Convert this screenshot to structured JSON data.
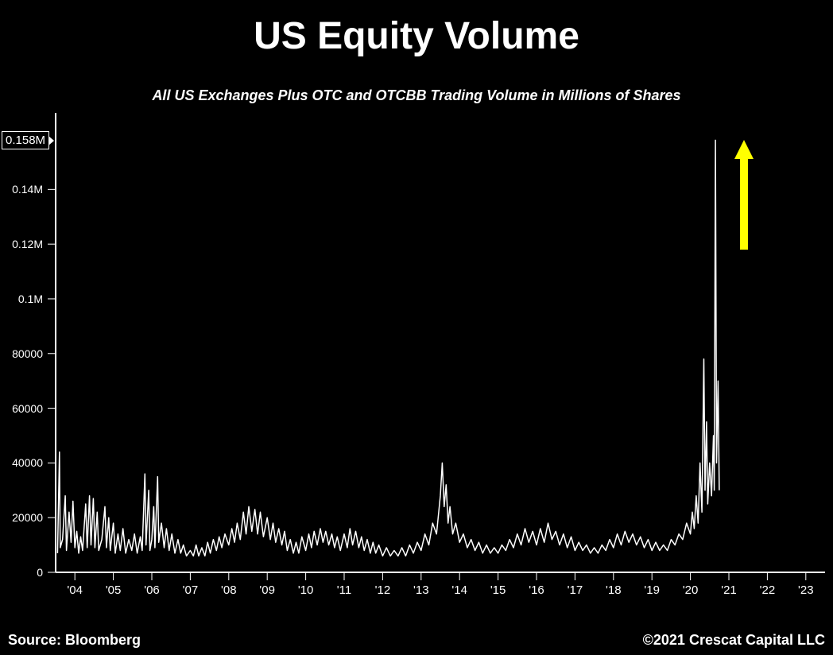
{
  "title": "US Equity Volume",
  "subtitle": "All US Exchanges Plus OTC and OTCBB Trading Volume in Millions of Shares",
  "source": "Source: Bloomberg",
  "copyright": "©2021 Crescat Capital LLC",
  "chart": {
    "type": "line",
    "background_color": "#000000",
    "line_color": "#ffffff",
    "line_width": 1.5,
    "axis_color": "#ffffff",
    "tick_color": "#ffffff",
    "tick_length": 10,
    "current_value_badge": "0.158M",
    "arrow_color": "#ffff00",
    "y_axis": {
      "min": 0,
      "max": 168000,
      "ticks": [
        {
          "v": 0,
          "label": "0"
        },
        {
          "v": 20000,
          "label": "20000"
        },
        {
          "v": 40000,
          "label": "40000"
        },
        {
          "v": 60000,
          "label": "60000"
        },
        {
          "v": 80000,
          "label": "80000"
        },
        {
          "v": 100000,
          "label": "0.1M"
        },
        {
          "v": 120000,
          "label": "0.12M"
        },
        {
          "v": 140000,
          "label": "0.14M"
        }
      ]
    },
    "x_axis": {
      "min": 2003.5,
      "max": 2023.5,
      "ticks": [
        {
          "v": 2004,
          "label": "'04"
        },
        {
          "v": 2005,
          "label": "'05"
        },
        {
          "v": 2006,
          "label": "'06"
        },
        {
          "v": 2007,
          "label": "'07"
        },
        {
          "v": 2008,
          "label": "'08"
        },
        {
          "v": 2009,
          "label": "'09"
        },
        {
          "v": 2010,
          "label": "'10"
        },
        {
          "v": 2011,
          "label": "'11"
        },
        {
          "v": 2012,
          "label": "'12"
        },
        {
          "v": 2013,
          "label": "'13"
        },
        {
          "v": 2014,
          "label": "'14"
        },
        {
          "v": 2015,
          "label": "'15"
        },
        {
          "v": 2016,
          "label": "'16"
        },
        {
          "v": 2017,
          "label": "'17"
        },
        {
          "v": 2018,
          "label": "'18"
        },
        {
          "v": 2019,
          "label": "'19"
        },
        {
          "v": 2020,
          "label": "'20"
        },
        {
          "v": 2021,
          "label": "'21"
        },
        {
          "v": 2022,
          "label": "'22"
        },
        {
          "v": 2023,
          "label": "'23"
        }
      ]
    },
    "series": [
      {
        "x": 2003.55,
        "y": 7000
      },
      {
        "x": 2003.6,
        "y": 44000
      },
      {
        "x": 2003.62,
        "y": 9000
      },
      {
        "x": 2003.68,
        "y": 12000
      },
      {
        "x": 2003.75,
        "y": 28000
      },
      {
        "x": 2003.78,
        "y": 8000
      },
      {
        "x": 2003.85,
        "y": 22000
      },
      {
        "x": 2003.9,
        "y": 11000
      },
      {
        "x": 2003.95,
        "y": 26000
      },
      {
        "x": 2004.0,
        "y": 9000
      },
      {
        "x": 2004.05,
        "y": 15000
      },
      {
        "x": 2004.1,
        "y": 7000
      },
      {
        "x": 2004.15,
        "y": 13000
      },
      {
        "x": 2004.2,
        "y": 8000
      },
      {
        "x": 2004.28,
        "y": 25000
      },
      {
        "x": 2004.32,
        "y": 9000
      },
      {
        "x": 2004.38,
        "y": 28000
      },
      {
        "x": 2004.42,
        "y": 10000
      },
      {
        "x": 2004.48,
        "y": 27000
      },
      {
        "x": 2004.52,
        "y": 9000
      },
      {
        "x": 2004.58,
        "y": 22000
      },
      {
        "x": 2004.62,
        "y": 8000
      },
      {
        "x": 2004.7,
        "y": 12000
      },
      {
        "x": 2004.78,
        "y": 24000
      },
      {
        "x": 2004.82,
        "y": 9000
      },
      {
        "x": 2004.88,
        "y": 20000
      },
      {
        "x": 2004.92,
        "y": 8000
      },
      {
        "x": 2005.0,
        "y": 18000
      },
      {
        "x": 2005.05,
        "y": 7000
      },
      {
        "x": 2005.12,
        "y": 14000
      },
      {
        "x": 2005.18,
        "y": 8000
      },
      {
        "x": 2005.25,
        "y": 16000
      },
      {
        "x": 2005.32,
        "y": 7000
      },
      {
        "x": 2005.4,
        "y": 12000
      },
      {
        "x": 2005.48,
        "y": 8000
      },
      {
        "x": 2005.55,
        "y": 14000
      },
      {
        "x": 2005.62,
        "y": 7000
      },
      {
        "x": 2005.7,
        "y": 13000
      },
      {
        "x": 2005.75,
        "y": 8000
      },
      {
        "x": 2005.82,
        "y": 36000
      },
      {
        "x": 2005.85,
        "y": 10000
      },
      {
        "x": 2005.92,
        "y": 30000
      },
      {
        "x": 2005.95,
        "y": 8000
      },
      {
        "x": 2006.0,
        "y": 12000
      },
      {
        "x": 2006.05,
        "y": 24000
      },
      {
        "x": 2006.08,
        "y": 9000
      },
      {
        "x": 2006.15,
        "y": 35000
      },
      {
        "x": 2006.18,
        "y": 11000
      },
      {
        "x": 2006.25,
        "y": 18000
      },
      {
        "x": 2006.32,
        "y": 9000
      },
      {
        "x": 2006.38,
        "y": 16000
      },
      {
        "x": 2006.45,
        "y": 8000
      },
      {
        "x": 2006.52,
        "y": 14000
      },
      {
        "x": 2006.6,
        "y": 7000
      },
      {
        "x": 2006.68,
        "y": 12000
      },
      {
        "x": 2006.75,
        "y": 7000
      },
      {
        "x": 2006.82,
        "y": 10000
      },
      {
        "x": 2006.9,
        "y": 6000
      },
      {
        "x": 2007.0,
        "y": 8000
      },
      {
        "x": 2007.08,
        "y": 6000
      },
      {
        "x": 2007.15,
        "y": 10000
      },
      {
        "x": 2007.22,
        "y": 6000
      },
      {
        "x": 2007.3,
        "y": 9000
      },
      {
        "x": 2007.38,
        "y": 6000
      },
      {
        "x": 2007.45,
        "y": 11000
      },
      {
        "x": 2007.52,
        "y": 7000
      },
      {
        "x": 2007.6,
        "y": 12000
      },
      {
        "x": 2007.68,
        "y": 8000
      },
      {
        "x": 2007.75,
        "y": 13000
      },
      {
        "x": 2007.82,
        "y": 9000
      },
      {
        "x": 2007.9,
        "y": 14000
      },
      {
        "x": 2008.0,
        "y": 10000
      },
      {
        "x": 2008.08,
        "y": 16000
      },
      {
        "x": 2008.15,
        "y": 11000
      },
      {
        "x": 2008.22,
        "y": 18000
      },
      {
        "x": 2008.3,
        "y": 12000
      },
      {
        "x": 2008.38,
        "y": 22000
      },
      {
        "x": 2008.45,
        "y": 14000
      },
      {
        "x": 2008.52,
        "y": 24000
      },
      {
        "x": 2008.6,
        "y": 15000
      },
      {
        "x": 2008.68,
        "y": 23000
      },
      {
        "x": 2008.75,
        "y": 14000
      },
      {
        "x": 2008.82,
        "y": 22000
      },
      {
        "x": 2008.9,
        "y": 13000
      },
      {
        "x": 2009.0,
        "y": 20000
      },
      {
        "x": 2009.08,
        "y": 12000
      },
      {
        "x": 2009.15,
        "y": 18000
      },
      {
        "x": 2009.22,
        "y": 11000
      },
      {
        "x": 2009.3,
        "y": 16000
      },
      {
        "x": 2009.38,
        "y": 10000
      },
      {
        "x": 2009.45,
        "y": 15000
      },
      {
        "x": 2009.52,
        "y": 8000
      },
      {
        "x": 2009.6,
        "y": 12000
      },
      {
        "x": 2009.68,
        "y": 7000
      },
      {
        "x": 2009.75,
        "y": 11000
      },
      {
        "x": 2009.82,
        "y": 7000
      },
      {
        "x": 2009.9,
        "y": 13000
      },
      {
        "x": 2010.0,
        "y": 8000
      },
      {
        "x": 2010.08,
        "y": 14000
      },
      {
        "x": 2010.15,
        "y": 9000
      },
      {
        "x": 2010.22,
        "y": 15000
      },
      {
        "x": 2010.3,
        "y": 10000
      },
      {
        "x": 2010.38,
        "y": 16000
      },
      {
        "x": 2010.45,
        "y": 11000
      },
      {
        "x": 2010.52,
        "y": 15000
      },
      {
        "x": 2010.6,
        "y": 10000
      },
      {
        "x": 2010.68,
        "y": 14000
      },
      {
        "x": 2010.75,
        "y": 9000
      },
      {
        "x": 2010.82,
        "y": 13000
      },
      {
        "x": 2010.9,
        "y": 8000
      },
      {
        "x": 2011.0,
        "y": 14000
      },
      {
        "x": 2011.08,
        "y": 9000
      },
      {
        "x": 2011.15,
        "y": 16000
      },
      {
        "x": 2011.22,
        "y": 10000
      },
      {
        "x": 2011.3,
        "y": 15000
      },
      {
        "x": 2011.38,
        "y": 9000
      },
      {
        "x": 2011.45,
        "y": 13000
      },
      {
        "x": 2011.52,
        "y": 8000
      },
      {
        "x": 2011.6,
        "y": 12000
      },
      {
        "x": 2011.68,
        "y": 7000
      },
      {
        "x": 2011.75,
        "y": 11000
      },
      {
        "x": 2011.82,
        "y": 7000
      },
      {
        "x": 2011.9,
        "y": 10000
      },
      {
        "x": 2012.0,
        "y": 6000
      },
      {
        "x": 2012.1,
        "y": 9000
      },
      {
        "x": 2012.2,
        "y": 6000
      },
      {
        "x": 2012.3,
        "y": 8000
      },
      {
        "x": 2012.4,
        "y": 6000
      },
      {
        "x": 2012.5,
        "y": 9000
      },
      {
        "x": 2012.6,
        "y": 6000
      },
      {
        "x": 2012.7,
        "y": 10000
      },
      {
        "x": 2012.8,
        "y": 7000
      },
      {
        "x": 2012.9,
        "y": 11000
      },
      {
        "x": 2013.0,
        "y": 8000
      },
      {
        "x": 2013.1,
        "y": 14000
      },
      {
        "x": 2013.2,
        "y": 10000
      },
      {
        "x": 2013.3,
        "y": 18000
      },
      {
        "x": 2013.4,
        "y": 14000
      },
      {
        "x": 2013.5,
        "y": 28000
      },
      {
        "x": 2013.55,
        "y": 40000
      },
      {
        "x": 2013.6,
        "y": 24000
      },
      {
        "x": 2013.65,
        "y": 32000
      },
      {
        "x": 2013.7,
        "y": 18000
      },
      {
        "x": 2013.75,
        "y": 24000
      },
      {
        "x": 2013.82,
        "y": 14000
      },
      {
        "x": 2013.9,
        "y": 18000
      },
      {
        "x": 2014.0,
        "y": 11000
      },
      {
        "x": 2014.1,
        "y": 14000
      },
      {
        "x": 2014.2,
        "y": 9000
      },
      {
        "x": 2014.3,
        "y": 12000
      },
      {
        "x": 2014.4,
        "y": 8000
      },
      {
        "x": 2014.5,
        "y": 11000
      },
      {
        "x": 2014.6,
        "y": 7000
      },
      {
        "x": 2014.7,
        "y": 10000
      },
      {
        "x": 2014.8,
        "y": 7000
      },
      {
        "x": 2014.9,
        "y": 9000
      },
      {
        "x": 2015.0,
        "y": 7000
      },
      {
        "x": 2015.1,
        "y": 10000
      },
      {
        "x": 2015.2,
        "y": 8000
      },
      {
        "x": 2015.3,
        "y": 12000
      },
      {
        "x": 2015.4,
        "y": 9000
      },
      {
        "x": 2015.5,
        "y": 14000
      },
      {
        "x": 2015.6,
        "y": 10000
      },
      {
        "x": 2015.7,
        "y": 16000
      },
      {
        "x": 2015.8,
        "y": 11000
      },
      {
        "x": 2015.9,
        "y": 15000
      },
      {
        "x": 2016.0,
        "y": 10000
      },
      {
        "x": 2016.1,
        "y": 16000
      },
      {
        "x": 2016.2,
        "y": 11000
      },
      {
        "x": 2016.3,
        "y": 18000
      },
      {
        "x": 2016.4,
        "y": 12000
      },
      {
        "x": 2016.5,
        "y": 15000
      },
      {
        "x": 2016.6,
        "y": 10000
      },
      {
        "x": 2016.7,
        "y": 14000
      },
      {
        "x": 2016.8,
        "y": 9000
      },
      {
        "x": 2016.9,
        "y": 13000
      },
      {
        "x": 2017.0,
        "y": 8000
      },
      {
        "x": 2017.1,
        "y": 11000
      },
      {
        "x": 2017.2,
        "y": 8000
      },
      {
        "x": 2017.3,
        "y": 10000
      },
      {
        "x": 2017.4,
        "y": 7000
      },
      {
        "x": 2017.5,
        "y": 9000
      },
      {
        "x": 2017.6,
        "y": 7000
      },
      {
        "x": 2017.7,
        "y": 10000
      },
      {
        "x": 2017.8,
        "y": 8000
      },
      {
        "x": 2017.9,
        "y": 12000
      },
      {
        "x": 2018.0,
        "y": 9000
      },
      {
        "x": 2018.1,
        "y": 14000
      },
      {
        "x": 2018.2,
        "y": 10000
      },
      {
        "x": 2018.3,
        "y": 15000
      },
      {
        "x": 2018.4,
        "y": 11000
      },
      {
        "x": 2018.5,
        "y": 14000
      },
      {
        "x": 2018.6,
        "y": 10000
      },
      {
        "x": 2018.7,
        "y": 13000
      },
      {
        "x": 2018.8,
        "y": 9000
      },
      {
        "x": 2018.9,
        "y": 12000
      },
      {
        "x": 2019.0,
        "y": 8000
      },
      {
        "x": 2019.1,
        "y": 11000
      },
      {
        "x": 2019.2,
        "y": 8000
      },
      {
        "x": 2019.3,
        "y": 10000
      },
      {
        "x": 2019.4,
        "y": 8000
      },
      {
        "x": 2019.5,
        "y": 12000
      },
      {
        "x": 2019.6,
        "y": 10000
      },
      {
        "x": 2019.7,
        "y": 14000
      },
      {
        "x": 2019.8,
        "y": 12000
      },
      {
        "x": 2019.9,
        "y": 18000
      },
      {
        "x": 2020.0,
        "y": 14000
      },
      {
        "x": 2020.05,
        "y": 22000
      },
      {
        "x": 2020.1,
        "y": 16000
      },
      {
        "x": 2020.15,
        "y": 28000
      },
      {
        "x": 2020.2,
        "y": 18000
      },
      {
        "x": 2020.25,
        "y": 40000
      },
      {
        "x": 2020.3,
        "y": 22000
      },
      {
        "x": 2020.35,
        "y": 78000
      },
      {
        "x": 2020.38,
        "y": 30000
      },
      {
        "x": 2020.42,
        "y": 55000
      },
      {
        "x": 2020.45,
        "y": 25000
      },
      {
        "x": 2020.5,
        "y": 40000
      },
      {
        "x": 2020.55,
        "y": 28000
      },
      {
        "x": 2020.6,
        "y": 50000
      },
      {
        "x": 2020.62,
        "y": 30000
      },
      {
        "x": 2020.65,
        "y": 158000
      },
      {
        "x": 2020.68,
        "y": 40000
      },
      {
        "x": 2020.72,
        "y": 70000
      },
      {
        "x": 2020.75,
        "y": 30000
      }
    ]
  }
}
